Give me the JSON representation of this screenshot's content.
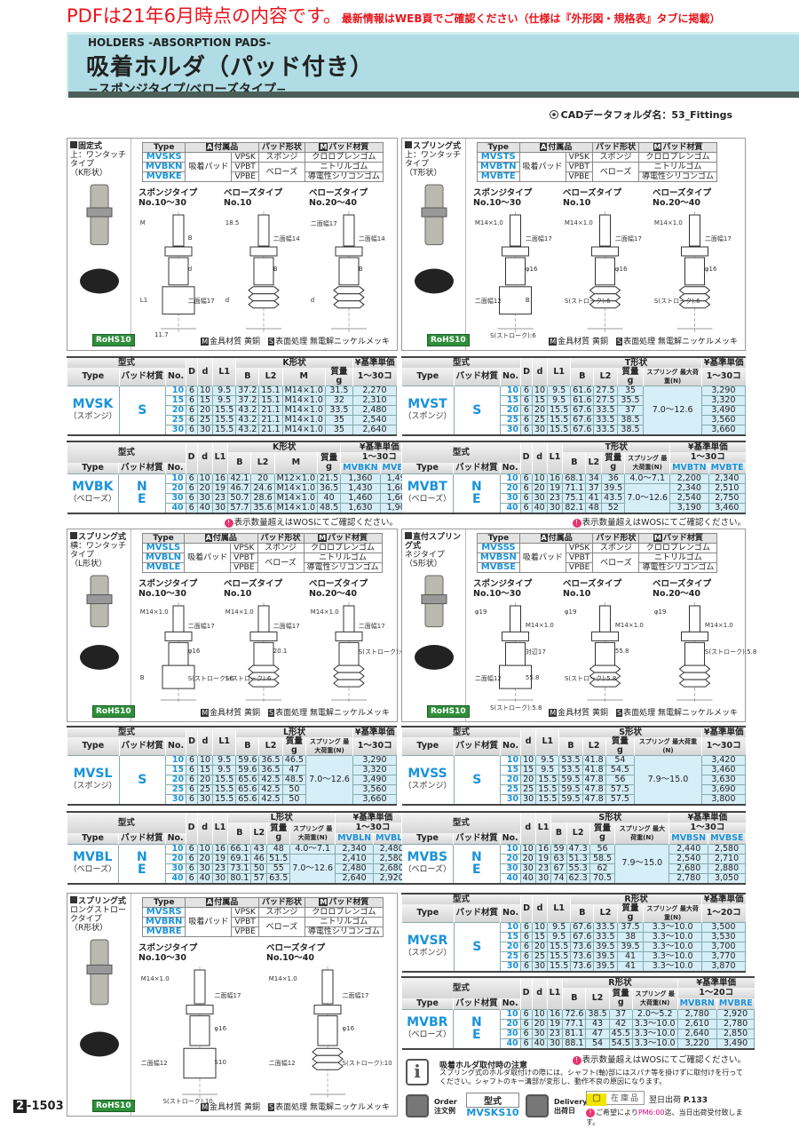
{
  "notice": {
    "main": "PDFは21年6月時点の内容です。",
    "sub": "最新情報はWEB頁でご確認ください（仕様は『外形図・規格表』タブに掲載）"
  },
  "header": {
    "en_title": "HOLDERS -ABSORPTION PADS-",
    "title": "吸着ホルダ（パッド付き）",
    "subtitle": "−スポンジタイプ/ベローズタイプ−",
    "cad": "CADデータフォルダ名：53_Fittings"
  },
  "colors": {
    "accent": "#1a93da",
    "notice": "#e8141c",
    "banner": "#b0dde5",
    "cell": "#d6eef8",
    "rohs": "#2f8e3a"
  },
  "common": {
    "spec_headers": {
      "type": "Type",
      "acc_badge": "A",
      "acc": "付属品",
      "shape": "パッド形状",
      "mat_badge": "M",
      "mat": "パッド材質"
    },
    "accessory": "吸着パッド",
    "parts": [
      "VPSK",
      "VPBT",
      "VPBE"
    ],
    "shapes": [
      "スポンジ",
      "ベローズ"
    ],
    "materials": [
      "クロロプレンゴム",
      "ニトリルゴム",
      "導電性シリコンゴム"
    ],
    "footer": {
      "m_badge": "M",
      "m_text": "金具材質 黄銅",
      "s_badge": "S",
      "s_text": "表面処理 無電解ニッケルメッキ"
    },
    "rohs": "RoHS10",
    "stock_note": "表示数量超えはWOSにてご確認ください。",
    "stock_note_icon": "!"
  },
  "sections": [
    {
      "title": "固定式",
      "sub1": "上：ワンタッチタイプ",
      "sub2": "（K形状）",
      "types": [
        "MVSKS",
        "MVBKN",
        "MVBKE"
      ],
      "subtypes": [
        [
          "スポンジタイプ",
          "No.10〜30"
        ],
        [
          "ベローズタイプ",
          "No.10"
        ],
        [
          "ベローズタイプ",
          "No.20〜40"
        ]
      ],
      "labels": [
        [
          "M",
          "B",
          "d",
          "L1",
          "二面幅17",
          "11.7"
        ],
        [
          "18.5",
          "二面幅14",
          "B",
          "d"
        ],
        [
          "二面幅17",
          "二面幅14",
          "B",
          "d"
        ]
      ]
    },
    {
      "title": "スプリング式",
      "sub1": "上：ワンタッチタイプ",
      "sub2": "（T形状）",
      "types": [
        "MVSTS",
        "MVBTN",
        "MVBTE"
      ],
      "subtypes": [
        [
          "スポンジタイプ",
          "No.10〜30"
        ],
        [
          "ベローズタイプ",
          "No.10"
        ],
        [
          "ベローズタイプ",
          "No.20〜40"
        ]
      ],
      "labels": [
        [
          "M14×1.0",
          "二面幅17",
          "φ16",
          "二面幅12",
          "B",
          "S(ストローク):6"
        ],
        [
          "M14×1.0",
          "二面幅17",
          "φ16",
          "S(ストローク):6"
        ],
        [
          "M14×1.0",
          "二面幅17",
          "φ16",
          "S(ストローク):6"
        ]
      ]
    },
    {
      "title": "スプリング式",
      "sub1": "横：ワンタッチタイプ",
      "sub2": "（L形状）",
      "types": [
        "MVSLS",
        "MVBLN",
        "MVBLE"
      ],
      "subtypes": [
        [
          "スポンジタイプ",
          "No.10〜30"
        ],
        [
          "ベローズタイプ",
          "No.10"
        ],
        [
          "ベローズタイプ",
          "No.20〜40"
        ]
      ],
      "labels": [
        [
          "M14×1.0",
          "二面幅17",
          "φ16",
          "B",
          "S(ストローク):6"
        ],
        [
          "M14×1.0",
          "二面幅17",
          "20.1",
          "S(ストローク):6"
        ],
        [
          "M14×1.0",
          "二面幅17",
          "S(ストローク):6"
        ]
      ]
    },
    {
      "title": "直付スプリング式",
      "sub1": "ネジタイプ",
      "sub2": "（S形状）",
      "types": [
        "MVSSS",
        "MVBSN",
        "MVBSE"
      ],
      "subtypes": [
        [
          "スポンジタイプ",
          "No.10〜30"
        ],
        [
          "ベローズタイプ",
          "No.10"
        ],
        [
          "ベローズタイプ",
          "No.20〜40"
        ]
      ],
      "labels": [
        [
          "φ19",
          "M14×1.0",
          "対辺17",
          "二面幅12",
          "55.8",
          "S(ストローク):5.8"
        ],
        [
          "φ19",
          "M14×1.0",
          "55.8",
          "S(ストローク):5.8"
        ],
        [
          "φ19",
          "M14×1.0",
          "S(ストローク):5.8"
        ]
      ]
    },
    {
      "title": "スプリング式",
      "sub1": "ロングストロークタイプ",
      "sub2": "（R形状）",
      "types": [
        "MVSRS",
        "MVBRN",
        "MVBRE"
      ],
      "subtypes": [
        [
          "スポンジタイプ",
          "No.10〜30"
        ],
        [
          "ベローズタイプ",
          "No.10〜40"
        ]
      ],
      "labels": [
        [
          "M14×1.0",
          "二面幅17",
          "φ16",
          "二面幅12",
          "S10",
          "S(ストローク):10"
        ],
        [
          "M14×1.0",
          "二面幅17",
          "φ16",
          "二面幅12",
          "S(ストローク):10"
        ]
      ]
    }
  ],
  "tables": [
    {
      "model": "型式",
      "type_h": "Type",
      "pad_h": "パッド材質",
      "no_h": "No.",
      "type": "MVSK",
      "material": "（スポンジ）",
      "pads": [
        "S"
      ],
      "pre": [
        "D",
        "d",
        "L1"
      ],
      "shape": "K形状",
      "shape_cols": [
        "B",
        "L2",
        "M",
        "質量 g"
      ],
      "price": "¥基準単価",
      "qty": "1〜30コ",
      "price_cols": [],
      "rows": [
        [
          "10",
          "6",
          "10",
          "9.5",
          "37.2",
          "15.1",
          "M14×1.0",
          "31.5",
          "2,270"
        ],
        [
          "15",
          "6",
          "15",
          "9.5",
          "37.2",
          "15.1",
          "M14×1.0",
          "32",
          "2,310"
        ],
        [
          "20",
          "6",
          "20",
          "15.5",
          "43.2",
          "21.1",
          "M14×1.0",
          "33.5",
          "2,480"
        ],
        [
          "25",
          "6",
          "25",
          "15.5",
          "43.2",
          "21.1",
          "M14×1.0",
          "35",
          "2,540"
        ],
        [
          "30",
          "6",
          "30",
          "15.5",
          "43.2",
          "21.1",
          "M14×1.0",
          "35",
          "2,640"
        ]
      ]
    },
    {
      "model": "型式",
      "type_h": "Type",
      "pad_h": "パッド材質",
      "no_h": "No.",
      "type": "MVBK",
      "material": "（ベローズ）",
      "pads": [
        "N",
        "E"
      ],
      "pre": [
        "D",
        "d",
        "L1"
      ],
      "shape": "K形状",
      "shape_cols": [
        "B",
        "L2",
        "M",
        "質量 g"
      ],
      "price": "¥基準単価",
      "qty": "1〜30コ",
      "price_cols": [
        "MVBKN",
        "MVBKE"
      ],
      "rows": [
        [
          "10",
          "6",
          "10",
          "16",
          "42.1",
          "20",
          "M12×1.0",
          "21.5",
          "1,360",
          "1,490"
        ],
        [
          "20",
          "6",
          "20",
          "19",
          "46.7",
          "24.6",
          "M14×1.0",
          "36.5",
          "1,430",
          "1,600"
        ],
        [
          "30",
          "6",
          "30",
          "23",
          "50.7",
          "28.6",
          "M14×1.0",
          "40",
          "1,460",
          "1,660"
        ],
        [
          "40",
          "6",
          "40",
          "30",
          "57.7",
          "35.6",
          "M14×1.0",
          "48.5",
          "1,630",
          "1,900"
        ]
      ]
    },
    {
      "model": "型式",
      "type_h": "Type",
      "pad_h": "パッド材質",
      "no_h": "No.",
      "type": "MVST",
      "material": "（スポンジ）",
      "pads": [
        "S"
      ],
      "pre": [
        "D",
        "d",
        "L1"
      ],
      "shape": "T形状",
      "shape_cols": [
        "B",
        "L2",
        "質量 g",
        "スプリング 最大荷重(N)"
      ],
      "price": "¥基準単価",
      "qty": "1〜30コ",
      "price_cols": [],
      "rows": [
        [
          "10",
          "6",
          "10",
          "9.5",
          "61.6",
          "27.5",
          "35",
          "7.0〜12.6",
          "3,290"
        ],
        [
          "15",
          "6",
          "15",
          "9.5",
          "61.6",
          "27.5",
          "35.5",
          null,
          "3,320"
        ],
        [
          "20",
          "6",
          "20",
          "15.5",
          "67.6",
          "33.5",
          "37",
          null,
          "3,490"
        ],
        [
          "25",
          "6",
          "25",
          "15.5",
          "67.6",
          "33.5",
          "38.5",
          null,
          "3,560"
        ],
        [
          "30",
          "6",
          "30",
          "15.5",
          "67.6",
          "33.5",
          "38.5",
          null,
          "3,660"
        ]
      ]
    },
    {
      "model": "型式",
      "type_h": "Type",
      "pad_h": "パッド材質",
      "no_h": "No.",
      "type": "MVBT",
      "material": "（ベローズ）",
      "pads": [
        "N",
        "E"
      ],
      "pre": [
        "D",
        "d",
        "L1"
      ],
      "shape": "T形状",
      "shape_cols": [
        "B",
        "L2",
        "質量 g",
        "スプリング 最大荷重(N)"
      ],
      "price": "¥基準単価",
      "qty": "1〜30コ",
      "price_cols": [
        "MVBTN",
        "MVBTE"
      ],
      "rows": [
        [
          "10",
          "6",
          "10",
          "16",
          "68.1",
          "34",
          "36",
          "4.0〜7.1",
          "2,200",
          "2,340"
        ],
        [
          "20",
          "6",
          "20",
          "19",
          "71.1",
          "37",
          "39.5",
          "7.0〜12.6",
          "2,340",
          "2,510"
        ],
        [
          "30",
          "6",
          "30",
          "23",
          "75.1",
          "41",
          "43.5",
          null,
          "2,540",
          "2,750"
        ],
        [
          "40",
          "6",
          "40",
          "30",
          "82.1",
          "48",
          "52",
          null,
          "3,190",
          "3,460"
        ]
      ]
    },
    {
      "model": "型式",
      "type_h": "Type",
      "pad_h": "パッド材質",
      "no_h": "No.",
      "type": "MVSL",
      "material": "（スポンジ）",
      "pads": [
        "S"
      ],
      "pre": [
        "D",
        "d",
        "L1"
      ],
      "shape": "L形状",
      "shape_cols": [
        "B",
        "L2",
        "質量 g",
        "スプリング 最大荷重(N)"
      ],
      "price": "¥基準単価",
      "qty": "1〜30コ",
      "price_cols": [],
      "rows": [
        [
          "10",
          "6",
          "10",
          "9.5",
          "59.6",
          "36.5",
          "46.5",
          "7.0〜12.6",
          "3,290"
        ],
        [
          "15",
          "6",
          "15",
          "9.5",
          "59.6",
          "36.5",
          "47",
          null,
          "3,320"
        ],
        [
          "20",
          "6",
          "20",
          "15.5",
          "65.6",
          "42.5",
          "48.5",
          null,
          "3,490"
        ],
        [
          "25",
          "6",
          "25",
          "15.5",
          "65.6",
          "42.5",
          "50",
          null,
          "3,560"
        ],
        [
          "30",
          "6",
          "30",
          "15.5",
          "65.6",
          "42.5",
          "50",
          null,
          "3,660"
        ]
      ]
    },
    {
      "model": "型式",
      "type_h": "Type",
      "pad_h": "パッド材質",
      "no_h": "No.",
      "type": "MVBL",
      "material": "（ベローズ）",
      "pads": [
        "N",
        "E"
      ],
      "pre": [
        "D",
        "d",
        "L1"
      ],
      "shape": "L形状",
      "shape_cols": [
        "B",
        "L2",
        "質量 g",
        "スプリング 最大荷重(N)"
      ],
      "price": "¥基準単価",
      "qty": "1〜30コ",
      "price_cols": [
        "MVBLN",
        "MVBLE"
      ],
      "rows": [
        [
          "10",
          "6",
          "10",
          "16",
          "66.1",
          "43",
          "48",
          "4.0〜7.1",
          "2,340",
          "2,480"
        ],
        [
          "20",
          "6",
          "20",
          "19",
          "69.1",
          "46",
          "51.5",
          "7.0〜12.6",
          "2,410",
          "2,580"
        ],
        [
          "30",
          "6",
          "30",
          "23",
          "73.1",
          "50",
          "55",
          null,
          "2,480",
          "2,680"
        ],
        [
          "40",
          "6",
          "40",
          "30",
          "80.1",
          "57",
          "63.5",
          null,
          "2,640",
          "2,920"
        ]
      ]
    },
    {
      "model": "型式",
      "type_h": "Type",
      "pad_h": "パッド材質",
      "no_h": "No.",
      "type": "MVSS",
      "material": "（スポンジ）",
      "pads": [
        "S"
      ],
      "pre": [
        "d",
        "L1"
      ],
      "shape": "S形状",
      "shape_cols": [
        "B",
        "L2",
        "質量 g",
        "スプリング 最大荷重(N)"
      ],
      "price": "¥基準単価",
      "qty": "1〜30コ",
      "price_cols": [],
      "rows": [
        [
          "10",
          "10",
          "9.5",
          "53.5",
          "41.8",
          "54",
          "7.9〜15.0",
          "3,420"
        ],
        [
          "15",
          "15",
          "9.5",
          "53.5",
          "41.8",
          "54.5",
          null,
          "3,460"
        ],
        [
          "20",
          "20",
          "15.5",
          "59.5",
          "47.8",
          "56",
          null,
          "3,630"
        ],
        [
          "25",
          "25",
          "15.5",
          "59.5",
          "47.8",
          "57.5",
          null,
          "3,690"
        ],
        [
          "30",
          "30",
          "15.5",
          "59.5",
          "47.8",
          "57.5",
          null,
          "3,800"
        ]
      ]
    },
    {
      "model": "型式",
      "type_h": "Type",
      "pad_h": "パッド材質",
      "no_h": "No.",
      "type": "MVBS",
      "material": "（ベローズ）",
      "pads": [
        "N",
        "E"
      ],
      "pre": [
        "d",
        "L1"
      ],
      "shape": "S形状",
      "shape_cols": [
        "B",
        "L2",
        "質量 g",
        "スプリング 最大荷重(N)"
      ],
      "price": "¥基準単価",
      "qty": "1〜30コ",
      "price_cols": [
        "MVBSN",
        "MVBSE"
      ],
      "rows": [
        [
          "10",
          "10",
          "16",
          "59",
          "47.3",
          "56",
          "7.9〜15.0",
          "2,440",
          "2,580"
        ],
        [
          "20",
          "20",
          "19",
          "63",
          "51.3",
          "58.5",
          null,
          "2,540",
          "2,710"
        ],
        [
          "30",
          "30",
          "23",
          "67",
          "55.3",
          "62",
          null,
          "2,680",
          "2,880"
        ],
        [
          "40",
          "40",
          "30",
          "74",
          "62.3",
          "70.5",
          null,
          "2,780",
          "3,050"
        ]
      ]
    },
    {
      "model": "型式",
      "type_h": "Type",
      "pad_h": "パッド材質",
      "no_h": "No.",
      "type": "MVSR",
      "material": "（スポンジ）",
      "pads": [
        "S"
      ],
      "pre": [
        "D",
        "d",
        "L1"
      ],
      "shape": "R形状",
      "shape_cols": [
        "B",
        "L2",
        "質量 g",
        "スプリング 最大荷重(N)"
      ],
      "price": "¥基準単価",
      "qty": "1〜20コ",
      "price_cols": [],
      "rows": [
        [
          "10",
          "6",
          "10",
          "9.5",
          "67.6",
          "33.5",
          "37.5",
          "3.3〜10.0",
          "3,500"
        ],
        [
          "15",
          "6",
          "15",
          "9.5",
          "67.6",
          "33.5",
          "38",
          "3.3〜10.0",
          "3,530"
        ],
        [
          "20",
          "6",
          "20",
          "15.5",
          "73.6",
          "39.5",
          "39.5",
          "3.3〜10.0",
          "3,700"
        ],
        [
          "25",
          "6",
          "25",
          "15.5",
          "73.6",
          "39.5",
          "41",
          "3.3〜10.0",
          "3,770"
        ],
        [
          "30",
          "6",
          "30",
          "15.5",
          "73.6",
          "39.5",
          "41",
          "3.3〜10.0",
          "3,870"
        ]
      ]
    },
    {
      "model": "型式",
      "type_h": "Type",
      "pad_h": "パッド材質",
      "no_h": "No.",
      "type": "MVBR",
      "material": "（ベローズ）",
      "pads": [
        "N",
        "E"
      ],
      "pre": [
        "D",
        "d",
        "L1"
      ],
      "shape": "R形状",
      "shape_cols": [
        "B",
        "L2",
        "質量 g",
        "スプリング 最大荷重(N)"
      ],
      "price": "¥基準単価",
      "qty": "1〜20コ",
      "price_cols": [
        "MVBRN",
        "MVBRE"
      ],
      "rows": [
        [
          "10",
          "6",
          "10",
          "16",
          "72.6",
          "38.5",
          "37",
          "2.0〜5.2",
          "2,780",
          "2,920"
        ],
        [
          "20",
          "6",
          "20",
          "19",
          "77.1",
          "43",
          "42",
          "3.3〜10.0",
          "2,610",
          "2,780"
        ],
        [
          "30",
          "6",
          "30",
          "23",
          "81.1",
          "47",
          "45.5",
          "3.3〜10.0",
          "2,640",
          "2,850"
        ],
        [
          "40",
          "6",
          "40",
          "30",
          "88.1",
          "54",
          "54.5",
          "3.3〜10.0",
          "3,220",
          "3,490"
        ]
      ]
    }
  ],
  "caution": {
    "title": "吸着ホルダ取付時の注意",
    "text": "スプリング式のホルダ取付けの際には、シャフト(軸)部にはスパナ等を掛けずに取付けを行ってください。シャフトのキー溝部が変形し、動作不良の原因になります。"
  },
  "order": {
    "label_en": "Order",
    "label_jp": "注文例",
    "model_h": "型式",
    "example": "MVSKS10"
  },
  "delivery": {
    "label_en": "Delivery",
    "label_jp": "出荷日",
    "stock": "在庫品",
    "ship": "翌日出荷",
    "ref": "P.133",
    "note_pre": "ご希望により",
    "note_time": "PM6:00",
    "note_post": "迄、当日出荷受付致します。"
  },
  "page": {
    "chapter": "2",
    "number": "-1503"
  }
}
